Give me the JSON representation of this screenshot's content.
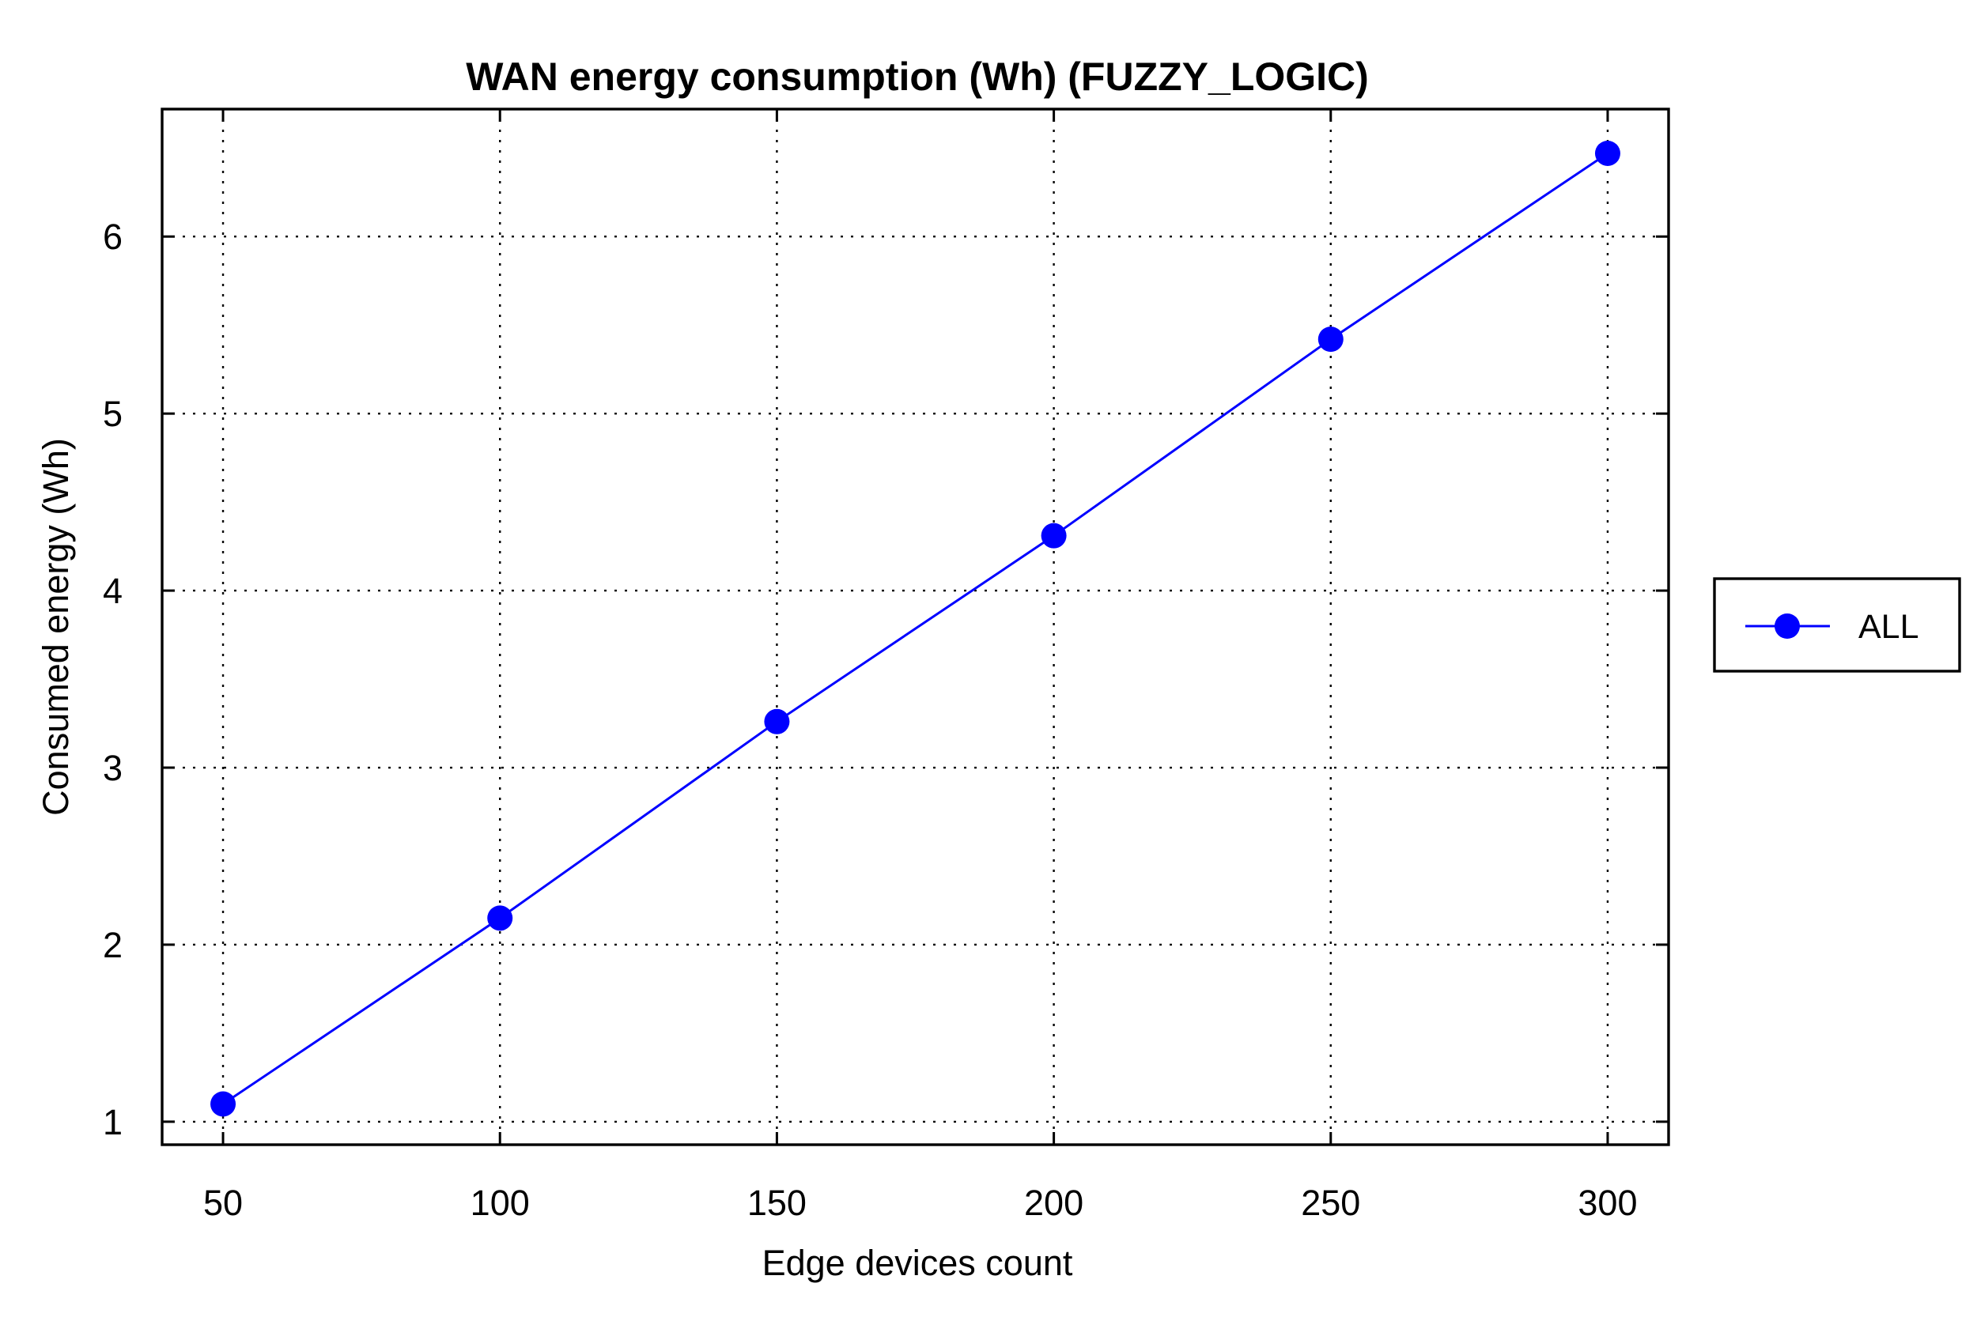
{
  "chart_data": {
    "type": "line",
    "title": "WAN energy consumption (Wh) (FUZZY_LOGIC)",
    "xlabel": "Edge devices count",
    "ylabel": "Consumed energy (Wh)",
    "x": [
      50,
      100,
      150,
      200,
      250,
      300
    ],
    "xticks": [
      "50",
      "100",
      "150",
      "200",
      "250",
      "300"
    ],
    "yticks": [
      "1",
      "2",
      "3",
      "4",
      "5",
      "6"
    ],
    "xlim": [
      39,
      311
    ],
    "ylim": [
      0.87,
      6.72
    ],
    "grid": true,
    "legend_position": "right-outside",
    "series": [
      {
        "name": "ALL",
        "color": "#0000ff",
        "marker": "circle",
        "values": [
          1.1,
          2.15,
          3.26,
          4.31,
          5.42,
          6.47
        ]
      }
    ]
  }
}
